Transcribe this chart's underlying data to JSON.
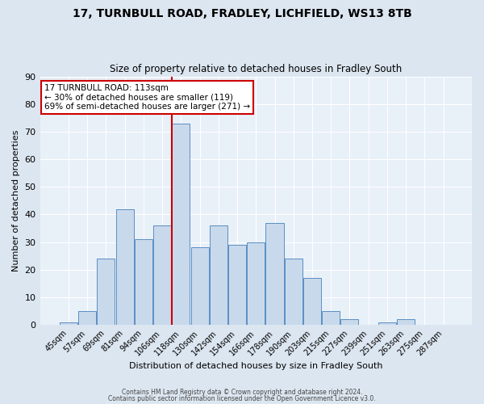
{
  "title": "17, TURNBULL ROAD, FRADLEY, LICHFIELD, WS13 8TB",
  "subtitle": "Size of property relative to detached houses in Fradley South",
  "xlabel": "Distribution of detached houses by size in Fradley South",
  "ylabel": "Number of detached properties",
  "bar_labels": [
    "45sqm",
    "57sqm",
    "69sqm",
    "81sqm",
    "94sqm",
    "106sqm",
    "118sqm",
    "130sqm",
    "142sqm",
    "154sqm",
    "166sqm",
    "178sqm",
    "190sqm",
    "203sqm",
    "215sqm",
    "227sqm",
    "239sqm",
    "251sqm",
    "263sqm",
    "275sqm",
    "287sqm"
  ],
  "bar_values": [
    1,
    5,
    24,
    42,
    31,
    36,
    73,
    28,
    36,
    29,
    30,
    37,
    24,
    17,
    5,
    2,
    0,
    1,
    2,
    0,
    0
  ],
  "bar_color": "#c9d9ec",
  "bar_edge_color": "#5a8fc3",
  "ylim": [
    0,
    90
  ],
  "yticks": [
    0,
    10,
    20,
    30,
    40,
    50,
    60,
    70,
    80,
    90
  ],
  "vline_x_index": 6,
  "vline_color": "#cc0000",
  "annotation_title": "17 TURNBULL ROAD: 113sqm",
  "annotation_line1": "← 30% of detached houses are smaller (119)",
  "annotation_line2": "69% of semi-detached houses are larger (271) →",
  "annotation_box_color": "#ffffff",
  "annotation_box_edge": "#cc0000",
  "footer1": "Contains HM Land Registry data © Crown copyright and database right 2024.",
  "footer2": "Contains public sector information licensed under the Open Government Licence v3.0.",
  "background_color": "#dce6f0",
  "plot_bg_color": "#e8f0f8"
}
